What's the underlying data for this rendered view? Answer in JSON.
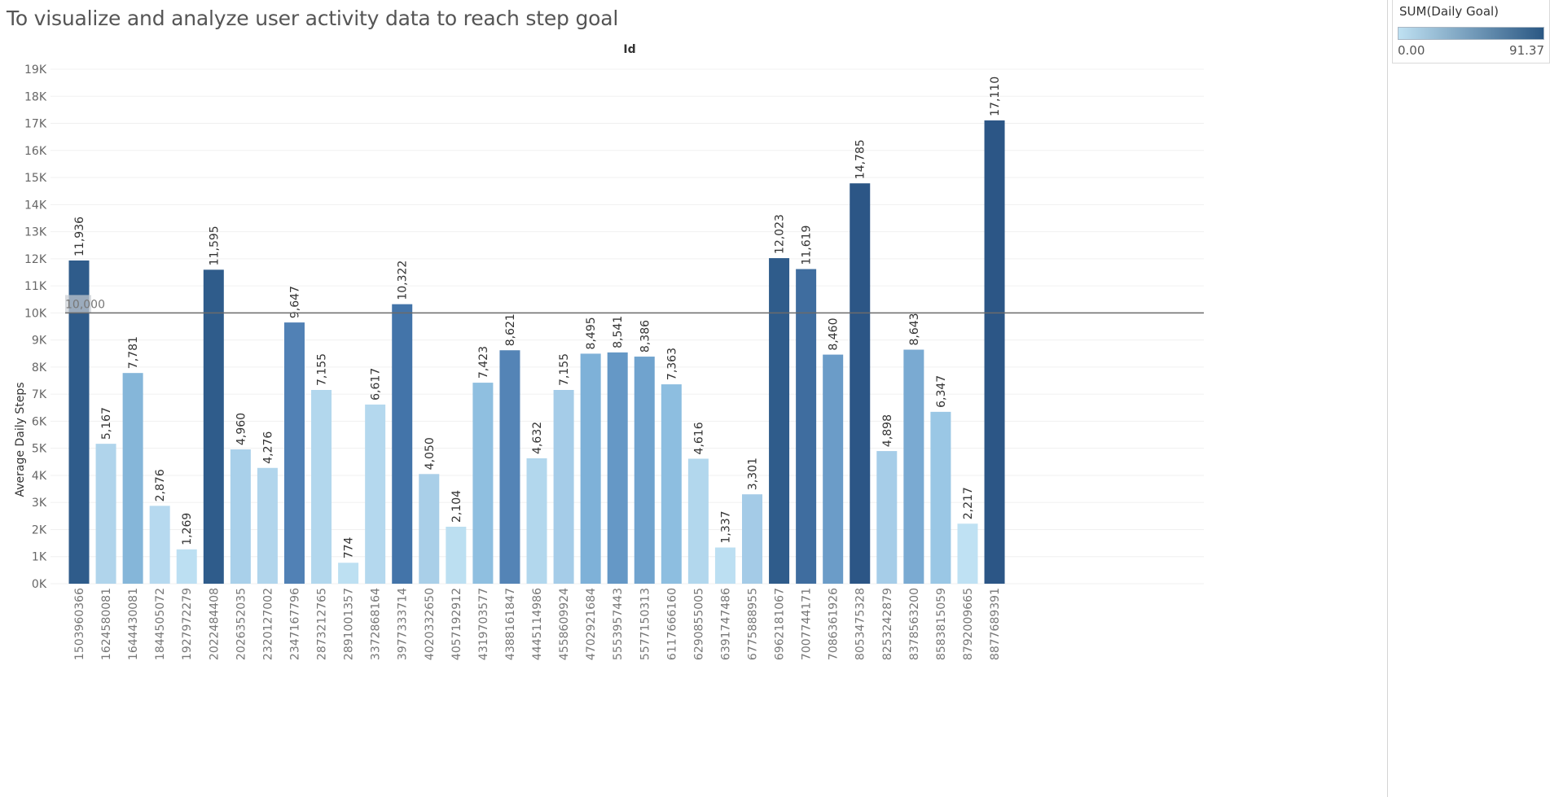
{
  "title": "To visualize and analyze user activity data to reach step goal",
  "legend": {
    "title": "SUM(Daily Goal)",
    "min_label": "0.00",
    "max_label": "91.37",
    "color_low": "#bfe1f2",
    "color_high": "#2a5783"
  },
  "chart_data": {
    "type": "bar",
    "xlabel": "Id",
    "ylabel": "Average Daily Steps",
    "ylim": [
      0,
      19000
    ],
    "y_ticks": [
      0,
      1000,
      2000,
      3000,
      4000,
      5000,
      6000,
      7000,
      8000,
      9000,
      10000,
      11000,
      12000,
      13000,
      14000,
      15000,
      16000,
      17000,
      18000,
      19000
    ],
    "y_tick_labels": [
      "0K",
      "1K",
      "2K",
      "3K",
      "4K",
      "5K",
      "6K",
      "7K",
      "8K",
      "9K",
      "10K",
      "11K",
      "12K",
      "13K",
      "14K",
      "15K",
      "16K",
      "17K",
      "18K",
      "19K"
    ],
    "reference_line": {
      "value": 10000,
      "label": "10,000"
    },
    "grid": "horizontal",
    "categories": [
      "1503960366",
      "1624580081",
      "1644430081",
      "1844505072",
      "1927972279",
      "2022484408",
      "2026352035",
      "2320127002",
      "2347167796",
      "2873212765",
      "2891001357",
      "3372868164",
      "3977333714",
      "4020332650",
      "4057192912",
      "4319703577",
      "4388161847",
      "4445114986",
      "4558609924",
      "4702921684",
      "5553957443",
      "5577150313",
      "6117666160",
      "6290855005",
      "6391747486",
      "6775888955",
      "6962181067",
      "7007744171",
      "7086361926",
      "8053475328",
      "8253242879",
      "8378563200",
      "8583815059",
      "8792009665",
      "8877689391"
    ],
    "values": [
      11936,
      5167,
      7781,
      2876,
      1269,
      11595,
      4960,
      4276,
      9647,
      7155,
      774,
      6617,
      10322,
      4050,
      2104,
      7423,
      8621,
      4632,
      7155,
      8495,
      8541,
      8386,
      7363,
      4616,
      1337,
      3301,
      12023,
      11619,
      8460,
      14785,
      4898,
      8643,
      6347,
      2217,
      17110
    ],
    "value_labels": [
      "11,936",
      "5,167",
      "7,781",
      "2,876",
      "1,269",
      "11,595",
      "4,960",
      "4,276",
      "9,647",
      "7,155",
      "774",
      "6,617",
      "10,322",
      "4,050",
      "2,104",
      "7,423",
      "8,621",
      "4,632",
      "7,155",
      "8,495",
      "8,541",
      "8,386",
      "7,363",
      "4,616",
      "1,337",
      "3,301",
      "12,023",
      "11,619",
      "8,460",
      "14,785",
      "4,898",
      "8,643",
      "6,347",
      "2,217",
      "17,110"
    ],
    "colors": [
      "#2f5c8b",
      "#b0d4eb",
      "#85b6d9",
      "#b6d9ef",
      "#bcdff2",
      "#2f5c8b",
      "#a9d0ea",
      "#b1d5ec",
      "#5181b5",
      "#b2d7ed",
      "#bde0f2",
      "#b4d8ee",
      "#4374a9",
      "#a9cfe8",
      "#bcdff1",
      "#8fbfe0",
      "#5484b6",
      "#b2d7ed",
      "#a5cce8",
      "#7eb1d8",
      "#6598c6",
      "#70a3ce",
      "#8dbee0",
      "#b2d7ed",
      "#bcdff2",
      "#a4cbe7",
      "#2f5c8b",
      "#3f6d9f",
      "#6b9cc8",
      "#2c5686",
      "#a6cde8",
      "#7aaad2",
      "#9ac7e5",
      "#bfe1f3",
      "#2c5686"
    ]
  }
}
